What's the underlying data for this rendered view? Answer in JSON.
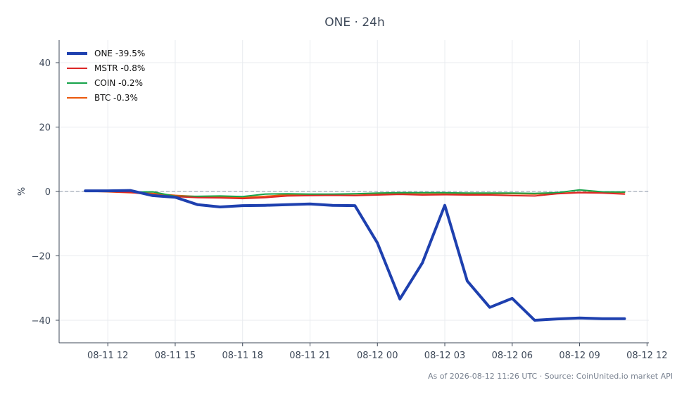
{
  "chart_data": {
    "type": "line",
    "title": "ONE · 24h",
    "xlabel": "",
    "ylabel": "%",
    "footnote": "As of 2026-08-12 11:26 UTC · Source: CoinUnited.io market API",
    "x_ticks": [
      "08-11 12",
      "08-11 15",
      "08-11 18",
      "08-11 21",
      "08-12 00",
      "08-12 03",
      "08-12 06",
      "08-12 09",
      "08-12 12"
    ],
    "x_range": [
      "08-11 09:50",
      "08-12 12:05"
    ],
    "ylim": [
      -47,
      47
    ],
    "y_ticks": [
      40,
      20,
      0,
      -20,
      -40
    ],
    "y_tick_labels": [
      "40",
      "20",
      "0",
      "−20",
      "−40"
    ],
    "grid": true,
    "zero_line": true,
    "legend_position": "top-left",
    "x": [
      "08-11 11",
      "08-11 12",
      "08-11 13",
      "08-11 14",
      "08-11 15",
      "08-11 16",
      "08-11 17",
      "08-11 18",
      "08-11 19",
      "08-11 20",
      "08-11 21",
      "08-11 22",
      "08-11 23",
      "08-12 00",
      "08-12 01",
      "08-12 02",
      "08-12 03",
      "08-12 04",
      "08-12 05",
      "08-12 06",
      "08-12 07",
      "08-12 08",
      "08-12 09",
      "08-12 10",
      "08-12 11"
    ],
    "series": [
      {
        "name": "ONE",
        "legend": "ONE -39.5%",
        "color": "#1e40af",
        "width": 4,
        "values": [
          0.2,
          0.2,
          0.3,
          -1.3,
          -1.8,
          -4.1,
          -4.8,
          -4.4,
          -4.3,
          -4.1,
          -3.9,
          -4.3,
          -4.4,
          -16.0,
          -33.4,
          -22.2,
          -4.3,
          -27.8,
          -36.0,
          -33.2,
          -40.0,
          -39.6,
          -39.3,
          -39.5,
          -39.5
        ]
      },
      {
        "name": "MSTR",
        "legend": "MSTR -0.8%",
        "color": "#dc2626",
        "width": 2,
        "values": [
          0.2,
          0.0,
          -0.3,
          -1.0,
          -1.6,
          -1.9,
          -2.0,
          -2.2,
          -1.9,
          -1.4,
          -1.3,
          -1.2,
          -1.3,
          -1.1,
          -0.9,
          -1.1,
          -1.0,
          -1.1,
          -1.1,
          -1.3,
          -1.4,
          -0.7,
          -0.4,
          -0.5,
          -0.8
        ]
      },
      {
        "name": "COIN",
        "legend": "COIN -0.2%",
        "color": "#16a34a",
        "width": 2,
        "values": [
          0.1,
          0.1,
          -0.2,
          -0.1,
          -1.5,
          -1.5,
          -1.4,
          -1.6,
          -0.8,
          -0.7,
          -0.8,
          -0.8,
          -0.7,
          -0.5,
          -0.4,
          -0.4,
          -0.4,
          -0.5,
          -0.5,
          -0.5,
          -0.6,
          -0.4,
          0.5,
          -0.1,
          -0.2
        ]
      },
      {
        "name": "BTC",
        "legend": "BTC -0.3%",
        "color": "#ea580c",
        "width": 2,
        "values": [
          0.1,
          -0.1,
          -0.4,
          -0.6,
          -1.2,
          -1.6,
          -1.8,
          -1.9,
          -1.5,
          -1.0,
          -0.9,
          -0.9,
          -0.8,
          -0.7,
          -0.6,
          -0.6,
          -0.6,
          -0.7,
          -0.7,
          -0.7,
          -0.8,
          -0.6,
          -0.3,
          -0.3,
          -0.3
        ]
      }
    ]
  }
}
